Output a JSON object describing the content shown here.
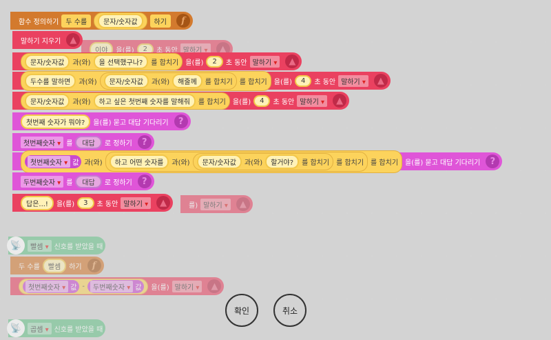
{
  "colors": {
    "function": "#d37a2e",
    "looks": "#ea4160",
    "variable": "#df55d8",
    "start": "#67c48a",
    "param": "#fcd35c"
  },
  "blocks": [
    {
      "name": "faded-speak-behind",
      "style": "pink faded",
      "tokens": [
        {
          "s": "이야"
        },
        {
          "t": "을(를)"
        },
        {
          "n": "2"
        },
        {
          "t": "초 동안"
        },
        {
          "d": "말하기"
        },
        {
          "icon": "looks-icon"
        }
      ]
    },
    {
      "name": "faded-speak-behind-2",
      "style": "pink faded",
      "tokens": [
        {
          "t": "를)"
        },
        {
          "d": "말하기"
        },
        {
          "icon": "looks-icon"
        }
      ]
    },
    {
      "name": "function-define-block",
      "style": "orange",
      "tokens": [
        {
          "t": "함수 정의하기"
        },
        {
          "pp": "두 수를"
        },
        {
          "g": [
            {
              "s": "문자/숫자값"
            }
          ]
        },
        {
          "pp": "하기"
        },
        {
          "icon": "function-icon"
        }
      ]
    },
    {
      "name": "clear-speech-block",
      "style": "pink",
      "tokens": [
        {
          "t": "말하기 지우기"
        },
        {
          "icon": "looks-icon"
        }
      ]
    },
    {
      "name": "speak-block-1",
      "style": "pink",
      "tokens": [
        {
          "g": [
            {
              "s": "문자/숫자값"
            },
            {
              "t": "과(와)"
            },
            {
              "s": "을 선택했구나?"
            },
            {
              "t": "를 합치기"
            }
          ]
        },
        {
          "t": "을(를)"
        },
        {
          "n": "2"
        },
        {
          "t": "초 동안"
        },
        {
          "d": "말하기"
        },
        {
          "icon": "looks-icon"
        }
      ]
    },
    {
      "name": "speak-block-2",
      "style": "pink",
      "tokens": [
        {
          "g": [
            {
              "s": "두수를 말하면"
            },
            {
              "t": "과(와)"
            },
            {
              "g": [
                {
                  "s": "문자/숫자값"
                },
                {
                  "t": "과(와)"
                },
                {
                  "s": "해줄께"
                },
                {
                  "t": "를 합치기"
                }
              ]
            },
            {
              "t": "를 합치기"
            }
          ]
        },
        {
          "t": "을(를)"
        },
        {
          "n": "4"
        },
        {
          "t": "초 동안"
        },
        {
          "d": "말하기"
        },
        {
          "icon": "looks-icon"
        }
      ]
    },
    {
      "name": "speak-block-3",
      "style": "pink",
      "tokens": [
        {
          "g": [
            {
              "s": "문자/숫자값"
            },
            {
              "t": "과(와)"
            },
            {
              "s": "하고 싶은 첫번째 숫자를 말해줘"
            },
            {
              "t": "를 합치기"
            }
          ]
        },
        {
          "t": "을(를)"
        },
        {
          "n": "4"
        },
        {
          "t": "초 동안"
        },
        {
          "d": "말하기"
        },
        {
          "icon": "looks-icon"
        }
      ]
    },
    {
      "name": "ask-block-1",
      "style": "purple",
      "tokens": [
        {
          "s": "첫번째 숫자가 뭐야?"
        },
        {
          "t": "을(를) 묻고 대답 기다리기"
        },
        {
          "icon": "question-icon"
        }
      ]
    },
    {
      "name": "set-variable-block-1",
      "style": "purple",
      "tokens": [
        {
          "d": "첫번째숫자"
        },
        {
          "t": "를"
        },
        {
          "p": "대답"
        },
        {
          "t": "로 정하기"
        },
        {
          "icon": "question-icon"
        }
      ]
    },
    {
      "name": "ask-block-2",
      "style": "purple",
      "tokens": [
        {
          "g": [
            {
              "v": [
                "첫번째숫자",
                "값"
              ]
            },
            {
              "t": "과(와)"
            },
            {
              "g": [
                {
                  "s": "하고 어떤 숫자를"
                },
                {
                  "t": "과(와)"
                },
                {
                  "g": [
                    {
                      "s": "문자/숫자값"
                    },
                    {
                      "t": "과(와)"
                    },
                    {
                      "s": "할거야?"
                    },
                    {
                      "t": "를 합치기"
                    }
                  ]
                },
                {
                  "t": "를 합치기"
                }
              ]
            },
            {
              "t": "를 합치기"
            }
          ]
        },
        {
          "t": "을(를) 묻고 대답 기다리기"
        },
        {
          "icon": "question-icon"
        }
      ]
    },
    {
      "name": "set-variable-block-2",
      "style": "purple",
      "tokens": [
        {
          "d": "두번째숫자"
        },
        {
          "t": "를"
        },
        {
          "p": "대답"
        },
        {
          "t": "로 정하기"
        },
        {
          "icon": "question-icon"
        }
      ]
    },
    {
      "name": "speak-block-4",
      "style": "pink",
      "tokens": [
        {
          "s": "답은...!"
        },
        {
          "t": "을(를)"
        },
        {
          "n": "3"
        },
        {
          "t": "초 동안"
        },
        {
          "d": "말하기"
        },
        {
          "icon": "looks-icon"
        }
      ]
    },
    {
      "name": "signal-block-subtract",
      "style": "green faded",
      "tokens": [
        {
          "icon": "satellite-icon"
        },
        {
          "d": "빨셈"
        },
        {
          "t": "신호를 받았을 때"
        }
      ]
    },
    {
      "name": "call-function-block",
      "style": "orange faded",
      "tokens": [
        {
          "t": "두 수를"
        },
        {
          "s": "빨셈"
        },
        {
          "t": "하기"
        },
        {
          "icon": "function-icon"
        }
      ]
    },
    {
      "name": "speak-subtract-block",
      "style": "pink faded",
      "tokens": [
        {
          "g": [
            {
              "v": [
                "첫번째숫자",
                "값"
              ]
            },
            {
              "t": "-"
            },
            {
              "v": [
                "두번째숫자",
                "값"
              ]
            }
          ]
        },
        {
          "t": "을(를)"
        },
        {
          "d": "말하기"
        },
        {
          "icon": "looks-icon"
        }
      ]
    },
    {
      "name": "signal-block-multiply",
      "style": "green faded",
      "tokens": [
        {
          "icon": "satellite-icon"
        },
        {
          "d": "곱셈"
        },
        {
          "t": "신호를 받았을 때"
        }
      ]
    }
  ],
  "dialog": {
    "confirm_label": "확인",
    "cancel_label": "취소"
  }
}
